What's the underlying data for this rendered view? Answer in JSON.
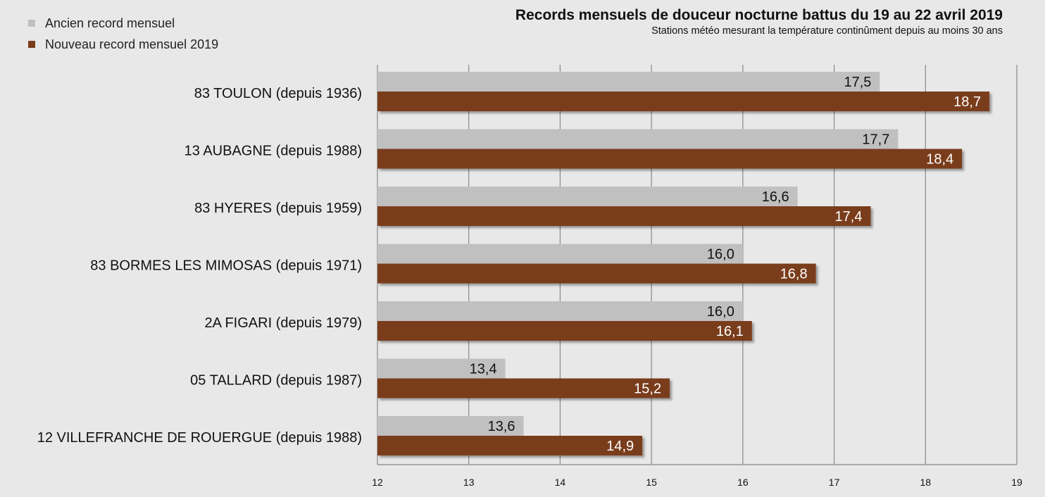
{
  "chart_data": {
    "type": "bar",
    "orientation": "horizontal",
    "title": "Records mensuels de douceur nocturne battus du 19 au 22 avril 2019",
    "subtitle": "Stations météo mesurant la température continûment depuis au moins 30 ans",
    "xlabel": "",
    "ylabel": "",
    "xlim": [
      12,
      19
    ],
    "xticks": [
      12,
      13,
      14,
      15,
      16,
      17,
      18,
      19
    ],
    "grid": true,
    "legend_position": "top-left",
    "categories": [
      "83 TOULON (depuis 1936)",
      "13 AUBAGNE (depuis 1988)",
      "83 HYERES (depuis 1959)",
      "83 BORMES LES MIMOSAS (depuis 1971)",
      "2A FIGARI (depuis 1979)",
      "05 TALLARD (depuis 1987)",
      "12 VILLEFRANCHE DE ROUERGUE (depuis 1988)"
    ],
    "series": [
      {
        "name": "Ancien record mensuel",
        "color": "#c0c0c0",
        "values": [
          17.5,
          17.7,
          16.6,
          16.0,
          16.0,
          13.4,
          13.6
        ],
        "labels": [
          "17,5",
          "17,7",
          "16,6",
          "16,0",
          "16,0",
          "13,4",
          "13,6"
        ]
      },
      {
        "name": "Nouveau record mensuel 2019",
        "color": "#7a3d1a",
        "values": [
          18.7,
          18.4,
          17.4,
          16.8,
          16.1,
          15.2,
          14.9
        ],
        "labels": [
          "18,7",
          "18,4",
          "17,4",
          "16,8",
          "16,1",
          "15,2",
          "14,9"
        ]
      }
    ]
  }
}
